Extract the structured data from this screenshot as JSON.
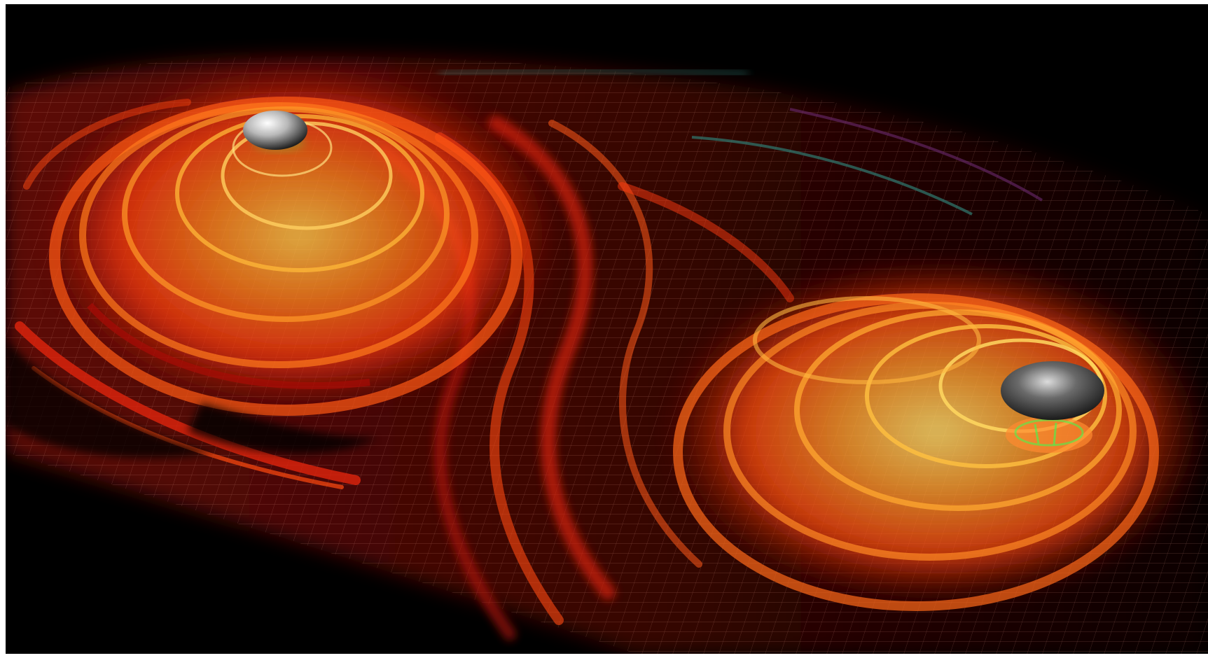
{
  "image": {
    "subject": "binary-black-hole-gravitational-waves",
    "colors": {
      "background": "#000000",
      "frame": "#ffffff",
      "wave_deep": "#b01008",
      "wave_mid": "#ff4a10",
      "wave_bright": "#ffb030",
      "wave_core": "#ffd860",
      "grid_line": "#ff9a80",
      "teal_accent": "#2f7a70",
      "violet_accent": "#6a2a70",
      "sphere_light": "#f2f2f2",
      "sphere_dark": "#2a2a2a",
      "green_glow": "#3aff50"
    },
    "objects": [
      {
        "name": "black-hole-upper-left"
      },
      {
        "name": "black-hole-lower-right"
      }
    ]
  }
}
